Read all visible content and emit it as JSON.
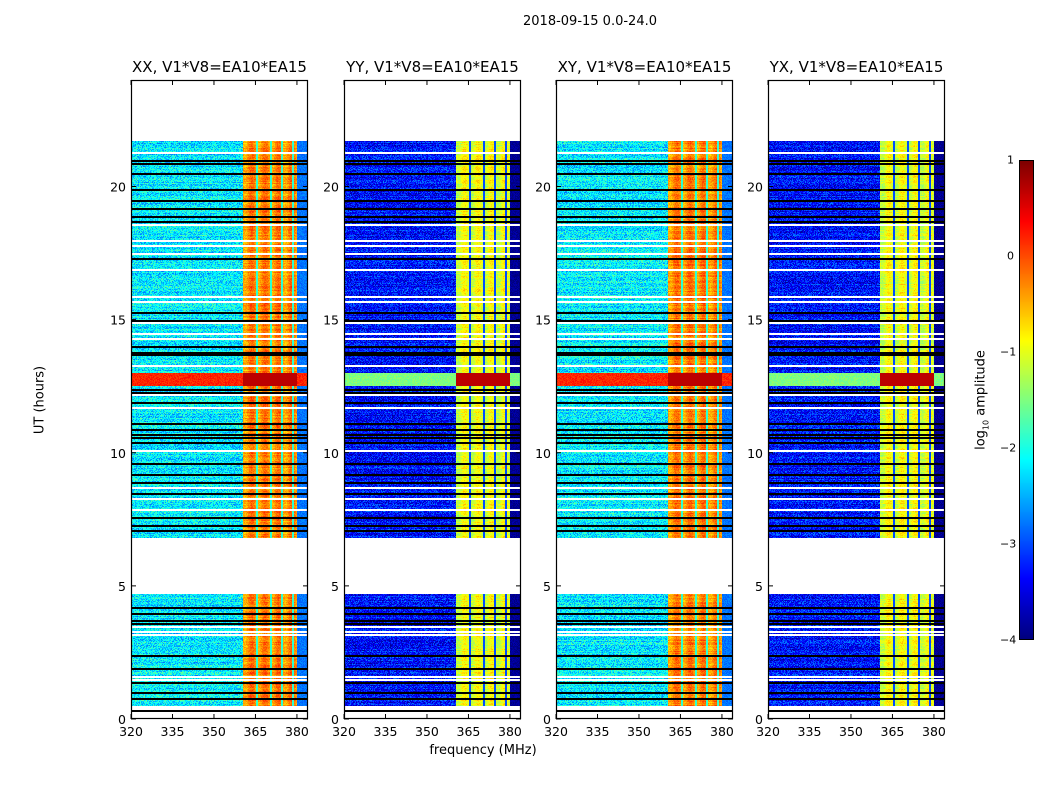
{
  "chart_data": {
    "type": "heatmap",
    "title": "2018-09-15 0.0-24.0",
    "xlabel": "frequency (MHz)",
    "ylabel": "UT (hours)",
    "xlim": [
      320,
      384
    ],
    "ylim": [
      0,
      24
    ],
    "xticks": [
      "320",
      "335",
      "350",
      "365",
      "380"
    ],
    "xtick_values": [
      320,
      335,
      350,
      365,
      380
    ],
    "yticks": [
      "0",
      "5",
      "10",
      "15",
      "20"
    ],
    "ytick_values": [
      0,
      5,
      10,
      15,
      20
    ],
    "panels": [
      {
        "title": "XX, V1*V8=EA10*EA15",
        "background_log_amp": -2.2,
        "band_log_amp": -0.3
      },
      {
        "title": "YY, V1*V8=EA10*EA15",
        "background_log_amp": -3.3,
        "band_log_amp": -1.0
      },
      {
        "title": "XY, V1*V8=EA10*EA15",
        "background_log_amp": -2.2,
        "band_log_amp": -0.3
      },
      {
        "title": "YX, V1*V8=EA10*EA15",
        "background_log_amp": -3.3,
        "band_log_amp": -1.0
      }
    ],
    "data_intervals_hours": [
      [
        0.5,
        4.7
      ],
      [
        6.8,
        21.7
      ]
    ],
    "rfi_band_mhz": [
      360.5,
      380
    ],
    "channel_edges_mhz": [
      365.5,
      370.5,
      374.5,
      378.5
    ],
    "strong_event_hours": [
      12.5,
      13.0
    ],
    "flagged_rows_hours": [
      21.0,
      20.9,
      20.5,
      19.9,
      19.5,
      19.2,
      18.9,
      18.7,
      17.3,
      15.3,
      15.0,
      14.0,
      13.8,
      13.7,
      12.4,
      12.3,
      11.9,
      11.1,
      10.9,
      10.7,
      10.6,
      10.4,
      9.6,
      9.2,
      8.9,
      8.5,
      7.6,
      7.3,
      7.1,
      4.2,
      4.0,
      3.7,
      3.6,
      2.4,
      1.9,
      1.4,
      1.0,
      0.8,
      0.35
    ],
    "blank_rows_hours": [
      21.3,
      18.6,
      18.0,
      17.8,
      17.5,
      16.9,
      15.9,
      15.7,
      14.9,
      14.5,
      14.3,
      13.3,
      12.2,
      11.7,
      10.1,
      8.7,
      8.3,
      7.9,
      3.5,
      3.3,
      3.2,
      1.6,
      1.5
    ],
    "colorbar": {
      "label": "log10 amplitude",
      "label_main": "log",
      "label_sub": "10",
      "label_rest": " amplitude",
      "colormap": "jet",
      "range": [
        -4,
        1
      ],
      "ticks": [
        "1",
        "0",
        "−1",
        "−2",
        "−3",
        "−4"
      ],
      "tick_values": [
        1,
        0,
        -1,
        -2,
        -3,
        -4
      ]
    }
  }
}
